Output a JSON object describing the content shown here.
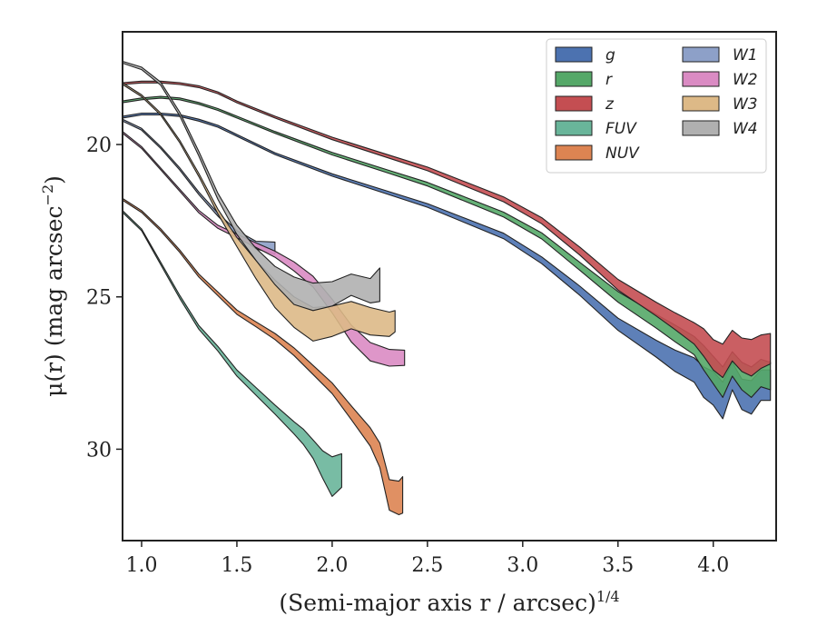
{
  "chart_data": {
    "type": "area",
    "xlabel": "(Semi-major axis r / arcsec)",
    "xlabel_italic_part": "r",
    "xlabel_exponent": "1/4",
    "ylabel_prefix": "μ(r) (mag arcsec",
    "ylabel_exponent": "−2",
    "ylabel_suffix": ")",
    "xlim": [
      0.9,
      4.33
    ],
    "ylim": [
      33.0,
      16.3
    ],
    "y_inverted": true,
    "x_ticks": [
      1.0,
      1.5,
      2.0,
      2.5,
      3.0,
      3.5,
      4.0
    ],
    "x_tick_labels": [
      "1.0",
      "1.5",
      "2.0",
      "2.5",
      "3.0",
      "3.5",
      "4.0"
    ],
    "y_ticks": [
      20,
      25,
      30
    ],
    "y_tick_labels": [
      "20",
      "25",
      "30"
    ],
    "grid": false,
    "legend_position": "top-right",
    "legend_columns": 2,
    "series": [
      {
        "name": "g",
        "color": "#4c72b0",
        "x": [
          0.9,
          1.0,
          1.1,
          1.2,
          1.3,
          1.4,
          1.5,
          1.7,
          2.0,
          2.3,
          2.5,
          2.7,
          2.9,
          3.1,
          3.3,
          3.5,
          3.7,
          3.8,
          3.9,
          3.95,
          4.0,
          4.05,
          4.1,
          4.15,
          4.2,
          4.25,
          4.3
        ],
        "y": [
          19.1,
          19.0,
          19.0,
          19.05,
          19.2,
          19.4,
          19.7,
          20.3,
          21.0,
          21.6,
          22.0,
          22.5,
          23.0,
          23.8,
          24.8,
          25.9,
          26.7,
          27.1,
          27.4,
          27.8,
          28.0,
          28.4,
          27.6,
          28.2,
          28.3,
          27.9,
          27.9
        ],
        "band": [
          0.06,
          0.06,
          0.06,
          0.06,
          0.06,
          0.06,
          0.06,
          0.06,
          0.08,
          0.1,
          0.12,
          0.15,
          0.18,
          0.22,
          0.3,
          0.4,
          0.55,
          0.7,
          0.8,
          1.0,
          1.1,
          1.2,
          0.9,
          1.0,
          1.1,
          1.0,
          1.0
        ]
      },
      {
        "name": "r",
        "color": "#55a868",
        "x": [
          0.9,
          1.0,
          1.1,
          1.2,
          1.3,
          1.4,
          1.5,
          1.7,
          2.0,
          2.3,
          2.5,
          2.7,
          2.9,
          3.1,
          3.3,
          3.5,
          3.7,
          3.8,
          3.9,
          3.95,
          4.0,
          4.05,
          4.1,
          4.15,
          4.2,
          4.25,
          4.3
        ],
        "y": [
          18.6,
          18.5,
          18.45,
          18.5,
          18.65,
          18.85,
          19.1,
          19.6,
          20.3,
          20.9,
          21.3,
          21.8,
          22.3,
          23.0,
          24.0,
          25.0,
          25.8,
          26.2,
          26.6,
          27.0,
          27.4,
          27.8,
          27.2,
          27.6,
          27.8,
          27.5,
          27.6
        ],
        "band": [
          0.06,
          0.06,
          0.06,
          0.06,
          0.06,
          0.06,
          0.06,
          0.06,
          0.08,
          0.1,
          0.12,
          0.14,
          0.16,
          0.2,
          0.26,
          0.35,
          0.45,
          0.55,
          0.6,
          0.8,
          0.9,
          1.0,
          0.8,
          0.9,
          1.0,
          0.9,
          0.9
        ]
      },
      {
        "name": "z",
        "color": "#c44e52",
        "x": [
          0.9,
          1.0,
          1.1,
          1.2,
          1.3,
          1.4,
          1.5,
          1.7,
          2.0,
          2.3,
          2.5,
          2.7,
          2.9,
          3.1,
          3.3,
          3.5,
          3.7,
          3.8,
          3.9,
          3.95,
          4.0,
          4.05,
          4.1,
          4.15,
          4.2,
          4.25,
          4.3
        ],
        "y": [
          18.0,
          17.95,
          17.95,
          18.0,
          18.1,
          18.3,
          18.6,
          19.1,
          19.8,
          20.4,
          20.8,
          21.3,
          21.8,
          22.5,
          23.5,
          24.6,
          25.4,
          25.8,
          26.2,
          26.5,
          26.9,
          27.1,
          26.6,
          26.9,
          27.0,
          26.8,
          26.7
        ],
        "band": [
          0.06,
          0.06,
          0.06,
          0.06,
          0.06,
          0.06,
          0.06,
          0.06,
          0.08,
          0.1,
          0.12,
          0.14,
          0.16,
          0.2,
          0.26,
          0.35,
          0.45,
          0.55,
          0.7,
          0.9,
          1.0,
          1.1,
          1.0,
          1.1,
          1.2,
          1.1,
          1.0
        ]
      },
      {
        "name": "FUV",
        "color": "#69b59a",
        "x": [
          0.9,
          1.0,
          1.1,
          1.2,
          1.3,
          1.4,
          1.5,
          1.6,
          1.7,
          1.8,
          1.85,
          1.9,
          1.95,
          2.0,
          2.05
        ],
        "y": [
          22.2,
          22.8,
          23.9,
          25.0,
          26.0,
          26.7,
          27.5,
          28.1,
          28.7,
          29.3,
          29.6,
          30.0,
          30.5,
          30.9,
          30.7
        ],
        "band": [
          0.06,
          0.06,
          0.08,
          0.1,
          0.12,
          0.15,
          0.2,
          0.25,
          0.3,
          0.4,
          0.5,
          0.6,
          0.9,
          1.3,
          1.1
        ]
      },
      {
        "name": "NUV",
        "color": "#dd8452",
        "x": [
          0.9,
          1.0,
          1.1,
          1.2,
          1.3,
          1.4,
          1.5,
          1.6,
          1.7,
          1.8,
          1.9,
          2.0,
          2.1,
          2.2,
          2.25,
          2.3,
          2.35,
          2.37
        ],
        "y": [
          21.8,
          22.2,
          22.8,
          23.5,
          24.3,
          24.9,
          25.5,
          25.9,
          26.3,
          26.8,
          27.4,
          28.0,
          28.8,
          29.6,
          30.2,
          31.5,
          31.6,
          31.5
        ],
        "band": [
          0.06,
          0.06,
          0.07,
          0.08,
          0.1,
          0.12,
          0.14,
          0.16,
          0.2,
          0.25,
          0.3,
          0.35,
          0.45,
          0.6,
          0.8,
          1.0,
          1.1,
          1.2
        ]
      },
      {
        "name": "W1",
        "color": "#8da0c8",
        "x": [
          0.9,
          1.0,
          1.1,
          1.2,
          1.3,
          1.4,
          1.5,
          1.6,
          1.7
        ],
        "y": [
          19.2,
          19.5,
          20.1,
          20.8,
          21.6,
          22.3,
          22.9,
          23.3,
          23.4
        ],
        "band": [
          0.06,
          0.06,
          0.06,
          0.07,
          0.08,
          0.1,
          0.15,
          0.25,
          0.4
        ]
      },
      {
        "name": "W2",
        "color": "#da8bc3",
        "x": [
          0.9,
          1.0,
          1.1,
          1.2,
          1.3,
          1.4,
          1.5,
          1.6,
          1.7,
          1.8,
          1.9,
          2.0,
          2.1,
          2.2,
          2.3,
          2.38
        ],
        "y": [
          19.6,
          20.1,
          20.8,
          21.5,
          22.2,
          22.7,
          23.0,
          23.3,
          23.6,
          24.0,
          24.5,
          25.3,
          26.2,
          26.8,
          27.0,
          27.0
        ],
        "band": [
          0.06,
          0.06,
          0.06,
          0.07,
          0.08,
          0.1,
          0.12,
          0.15,
          0.2,
          0.3,
          0.35,
          0.45,
          0.55,
          0.6,
          0.55,
          0.5
        ]
      },
      {
        "name": "W3",
        "color": "#ddb987",
        "x": [
          0.9,
          1.0,
          1.1,
          1.2,
          1.3,
          1.4,
          1.5,
          1.6,
          1.7,
          1.8,
          1.9,
          2.0,
          2.1,
          2.2,
          2.3,
          2.33
        ],
        "y": [
          18.0,
          18.4,
          19.0,
          19.9,
          21.0,
          22.2,
          23.2,
          24.1,
          24.9,
          25.5,
          25.9,
          25.8,
          25.6,
          25.8,
          25.9,
          25.8
        ],
        "band": [
          0.06,
          0.06,
          0.07,
          0.08,
          0.1,
          0.15,
          0.3,
          0.6,
          0.9,
          1.0,
          1.1,
          1.0,
          0.9,
          0.9,
          0.8,
          0.7
        ]
      },
      {
        "name": "W4",
        "color": "#b0b0b0",
        "x": [
          0.9,
          1.0,
          1.1,
          1.2,
          1.3,
          1.4,
          1.5,
          1.6,
          1.7,
          1.8,
          1.9,
          2.0,
          2.1,
          2.2,
          2.25
        ],
        "y": [
          17.3,
          17.5,
          18.0,
          19.0,
          20.3,
          21.7,
          22.8,
          23.6,
          24.3,
          24.8,
          25.0,
          24.9,
          24.6,
          24.8,
          24.6
        ],
        "band": [
          0.06,
          0.08,
          0.1,
          0.12,
          0.15,
          0.2,
          0.3,
          0.4,
          0.6,
          0.9,
          0.9,
          0.8,
          0.7,
          0.8,
          1.1
        ]
      }
    ]
  }
}
